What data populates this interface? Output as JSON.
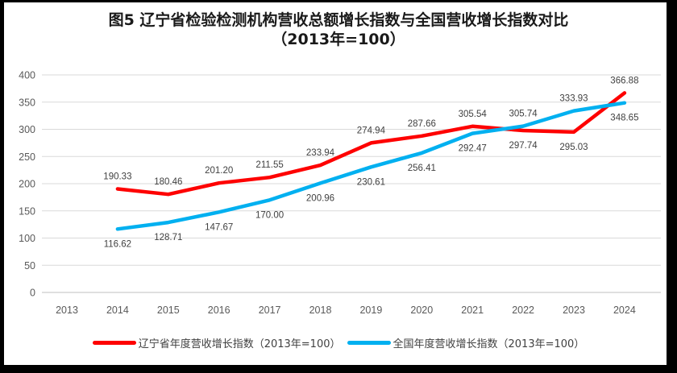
{
  "figure": {
    "title_line1": "图5  辽宁省检验检测机构营收总额增长指数与全国营收增长指数对比",
    "title_line2": "（2013年=100）"
  },
  "colors": {
    "liaoning": "#FE0000",
    "national": "#00B0F0",
    "gridline": "#D9D9D9",
    "axis_line": "#BFBFBF",
    "tick_text": "#595959",
    "data_label_text": "#404040"
  },
  "chart_data": {
    "type": "line",
    "title": "图5 辽宁省检验检测机构营收总额增长指数与全国营收增长指数对比（2013年=100）",
    "categories": [
      "2013",
      "2014",
      "2015",
      "2016",
      "2017",
      "2018",
      "2019",
      "2020",
      "2021",
      "2022",
      "2023",
      "2024"
    ],
    "series": [
      {
        "name": "辽宁省年度营收增长指数（2013年=100）",
        "color_key": "liaoning",
        "start_category_index": 1,
        "values": [
          190.33,
          180.46,
          201.2,
          211.55,
          233.94,
          274.94,
          287.66,
          305.54,
          297.74,
          295.03,
          366.88
        ]
      },
      {
        "name": "全国年度营收增长指数（2013年=100）",
        "color_key": "national",
        "start_category_index": 1,
        "values": [
          116.62,
          128.71,
          147.67,
          170.0,
          200.96,
          230.61,
          256.41,
          292.47,
          305.74,
          333.93,
          348.65
        ]
      }
    ],
    "ylim": [
      0,
      400
    ],
    "yticks": [
      0,
      50,
      100,
      150,
      200,
      250,
      300,
      350,
      400
    ],
    "grid": true,
    "data_labels": true,
    "data_label_decimals": 2,
    "legend_position": "bottom"
  }
}
